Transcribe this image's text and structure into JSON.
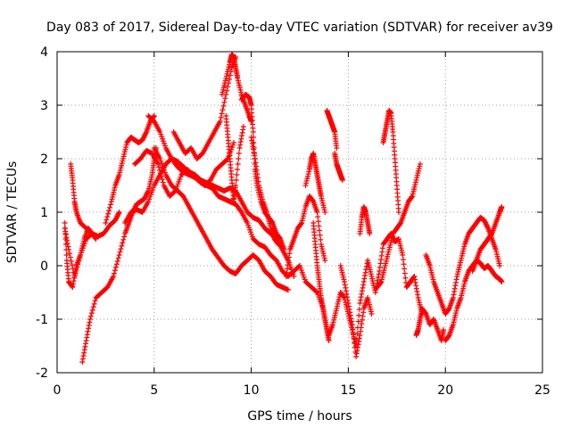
{
  "chart_data": {
    "type": "scatter",
    "title": "Day 083 of 2017, Sidereal Day-to-day VTEC variation (SDTVAR) for receiver av39",
    "xlabel": "GPS time / hours",
    "ylabel": "SDTVAR / TECUs",
    "xlim": [
      0,
      25
    ],
    "ylim": [
      -2,
      4
    ],
    "x_ticks": [
      0,
      5,
      10,
      15,
      20,
      25
    ],
    "y_ticks": [
      -2,
      -1,
      0,
      1,
      2,
      3,
      4
    ],
    "grid": true,
    "marker": "+",
    "series": [
      {
        "color": "#ff0000",
        "tracks": [
          {
            "x": [
              0.4,
              0.6,
              0.9,
              1.2,
              1.5,
              1.8,
              2.1,
              2.4,
              2.7,
              3.0,
              3.2
            ],
            "y": [
              0.7,
              0.3,
              -0.2,
              0.2,
              0.5,
              0.6,
              0.55,
              0.6,
              0.75,
              0.85,
              1.0
            ]
          },
          {
            "x": [
              0.4,
              0.5,
              0.6,
              0.8,
              1.0,
              1.2,
              1.4,
              1.6,
              1.8
            ],
            "y": [
              0.8,
              0.1,
              -0.3,
              -0.4,
              0.0,
              0.2,
              0.5,
              0.7,
              0.6
            ]
          },
          {
            "x": [
              0.7,
              0.8,
              0.9,
              1.0,
              1.2,
              1.5,
              1.8,
              2.0
            ],
            "y": [
              1.9,
              1.6,
              1.2,
              1.0,
              0.8,
              0.7,
              0.6,
              0.5
            ]
          },
          {
            "x": [
              1.3,
              1.5,
              1.7,
              2.0,
              2.3,
              2.6,
              2.9,
              3.2,
              3.5,
              3.7,
              3.9,
              4.1,
              4.3,
              4.5,
              4.7,
              4.9,
              5.0,
              5.1
            ],
            "y": [
              -1.8,
              -1.4,
              -1.0,
              -0.6,
              -0.5,
              -0.4,
              -0.2,
              0.2,
              0.6,
              0.8,
              1.0,
              1.15,
              1.2,
              1.25,
              1.4,
              1.7,
              2.0,
              2.2
            ]
          },
          {
            "x": [
              2.5,
              2.8,
              3.0,
              3.2,
              3.4,
              3.6,
              3.8,
              4.0,
              4.2,
              4.4,
              4.6,
              4.8,
              5.0
            ],
            "y": [
              0.8,
              1.2,
              1.5,
              1.7,
              2.0,
              2.3,
              2.4,
              2.35,
              2.3,
              2.35,
              2.5,
              2.7,
              2.8
            ]
          },
          {
            "x": [
              3.5,
              3.8,
              4.1,
              4.4,
              4.7,
              5.0,
              5.3,
              5.6,
              5.9,
              6.2,
              6.5,
              6.8,
              7.1,
              7.4,
              7.7,
              8.0,
              8.3,
              8.6,
              8.9,
              9.2,
              9.5,
              9.8,
              10.1,
              10.4,
              10.7,
              11.0,
              11.3,
              11.6,
              11.9,
              12.2
            ],
            "y": [
              0.8,
              1.0,
              1.05,
              1.0,
              1.2,
              1.5,
              1.7,
              1.9,
              2.0,
              1.95,
              1.85,
              1.75,
              1.7,
              1.6,
              1.55,
              1.5,
              1.45,
              1.4,
              1.45,
              1.4,
              1.2,
              1.0,
              0.9,
              0.85,
              0.7,
              0.6,
              0.5,
              0.3,
              0.1,
              -0.2
            ]
          },
          {
            "x": [
              5.0,
              5.3,
              5.6,
              5.9,
              6.2,
              6.5,
              6.8,
              7.1,
              7.4,
              7.7,
              8.0,
              8.3,
              8.6,
              8.9,
              9.2,
              9.5,
              9.8,
              10.1,
              10.4,
              10.7,
              11.0,
              11.3,
              11.6,
              11.9
            ],
            "y": [
              2.2,
              2.0,
              1.7,
              1.5,
              1.4,
              1.3,
              1.1,
              0.9,
              0.7,
              0.5,
              0.3,
              0.15,
              0.0,
              -0.1,
              -0.15,
              0.0,
              0.1,
              0.2,
              0.1,
              -0.1,
              -0.2,
              -0.35,
              -0.4,
              -0.45
            ]
          },
          {
            "x": [
              4.7,
              5.0,
              5.3,
              5.6,
              5.9,
              6.2,
              6.5,
              6.8,
              7.1,
              7.4,
              7.7,
              8.0,
              8.3,
              8.6,
              8.9,
              9.2,
              9.5,
              9.8,
              10.1,
              10.4,
              10.7,
              11.0,
              11.3,
              11.6,
              11.9,
              12.2,
              12.5,
              12.8,
              13.1,
              13.4,
              13.7
            ],
            "y": [
              2.8,
              2.7,
              2.5,
              2.2,
              2.0,
              1.85,
              1.75,
              1.7,
              1.65,
              1.55,
              1.5,
              1.45,
              1.3,
              1.25,
              1.2,
              1.15,
              1.0,
              0.8,
              0.5,
              0.4,
              0.35,
              0.2,
              0.1,
              -0.1,
              -0.2,
              -0.1,
              0.0,
              -0.3,
              -0.4,
              -0.5,
              -0.8
            ]
          },
          {
            "x": [
              4.0,
              4.3,
              4.6,
              4.9,
              5.2,
              5.5,
              5.8,
              6.1,
              6.4,
              6.7,
              7.0,
              7.3,
              7.6,
              7.9,
              8.2,
              8.5,
              8.8,
              9.1
            ],
            "y": [
              1.9,
              2.0,
              2.15,
              2.1,
              1.9,
              1.5,
              1.3,
              1.4,
              1.7,
              1.8,
              1.7,
              1.6,
              1.5,
              1.6,
              1.8,
              1.9,
              2.0,
              2.3
            ]
          },
          {
            "x": [
              6.0,
              6.3,
              6.6,
              6.9,
              7.2,
              7.5,
              7.8,
              8.1,
              8.4,
              8.7,
              9.0,
              9.2
            ],
            "y": [
              2.5,
              2.3,
              2.1,
              2.2,
              2.0,
              2.1,
              2.3,
              2.5,
              2.7,
              3.2,
              3.7,
              3.9
            ]
          },
          {
            "x": [
              8.5,
              8.7,
              8.9,
              9.0,
              9.1,
              9.2,
              9.3,
              9.5,
              9.7,
              9.9,
              10.0
            ],
            "y": [
              3.2,
              3.5,
              3.8,
              3.95,
              3.9,
              3.7,
              3.5,
              3.2,
              3.0,
              2.8,
              2.7
            ]
          },
          {
            "x": [
              8.7,
              8.8,
              8.9,
              9.0,
              9.1,
              9.2,
              9.4,
              9.6
            ],
            "y": [
              2.8,
              2.4,
              2.0,
              1.6,
              1.2,
              1.5,
              2.2,
              2.6
            ]
          },
          {
            "x": [
              9.5,
              9.7,
              9.9,
              10.0,
              10.1,
              10.2,
              10.3,
              10.5,
              10.7,
              10.9,
              11.1,
              11.3,
              11.5,
              11.7
            ],
            "y": [
              3.1,
              3.2,
              3.15,
              3.0,
              2.5,
              1.8,
              1.5,
              1.2,
              1.0,
              0.9,
              0.8,
              0.6,
              0.5,
              0.3
            ]
          },
          {
            "x": [
              10.0,
              10.2,
              10.4,
              10.6,
              10.8,
              11.0,
              11.2,
              11.4
            ],
            "y": [
              2.4,
              2.0,
              1.5,
              1.2,
              1.0,
              0.7,
              0.5,
              0.4
            ]
          },
          {
            "x": [
              11.8,
              12.0,
              12.2,
              12.4,
              12.6,
              12.8,
              13.0,
              13.2,
              13.4,
              13.6,
              13.8
            ],
            "y": [
              -0.2,
              0.3,
              0.5,
              0.7,
              0.8,
              1.1,
              1.3,
              1.2,
              1.0,
              0.4,
              0.1
            ]
          },
          {
            "x": [
              12.8,
              13.0,
              13.1,
              13.2,
              13.3,
              13.4,
              13.5,
              13.6,
              13.8
            ],
            "y": [
              1.5,
              1.8,
              2.0,
              2.1,
              1.9,
              1.7,
              1.5,
              1.3,
              1.0
            ]
          },
          {
            "x": [
              13.2,
              13.3,
              13.4,
              13.5,
              13.6,
              13.7,
              13.8,
              13.9,
              14.0
            ],
            "y": [
              0.8,
              0.4,
              0.0,
              -0.3,
              -0.6,
              -0.8,
              -1.0,
              -1.2,
              -1.4
            ]
          },
          {
            "x": [
              13.9,
              14.0,
              14.1,
              14.2,
              14.3,
              14.4
            ],
            "y": [
              2.9,
              2.8,
              2.7,
              2.6,
              2.5,
              2.2
            ]
          },
          {
            "x": [
              14.3,
              14.4,
              14.5,
              14.6,
              14.7
            ],
            "y": [
              2.1,
              1.9,
              1.8,
              1.7,
              1.6
            ]
          },
          {
            "x": [
              14.0,
              14.2,
              14.4,
              14.6,
              14.8,
              15.0,
              15.2,
              15.4,
              15.6,
              15.8,
              16.0,
              16.2,
              16.4,
              16.6,
              16.8,
              17.0,
              17.2,
              17.4,
              17.6,
              17.8,
              18.0,
              18.2,
              18.4,
              18.6,
              18.8
            ],
            "y": [
              -1.3,
              -1.1,
              -0.8,
              -0.5,
              -0.6,
              -0.9,
              -1.2,
              -1.5,
              -0.7,
              -0.3,
              0.1,
              -0.2,
              -0.5,
              -0.1,
              0.4,
              0.5,
              0.6,
              0.45,
              0.5,
              0.2,
              -0.4,
              -0.3,
              -0.2,
              -0.6,
              -0.9
            ]
          },
          {
            "x": [
              14.6,
              14.8,
              15.0,
              15.2,
              15.4,
              15.6,
              15.8,
              16.0,
              16.2
            ],
            "y": [
              0.0,
              -0.3,
              -0.7,
              -1.1,
              -1.7,
              -1.3,
              -0.8,
              -0.6,
              -0.9
            ]
          },
          {
            "x": [
              15.6,
              15.7,
              15.8,
              15.9,
              16.0,
              16.1
            ],
            "y": [
              0.6,
              0.9,
              1.1,
              1.0,
              0.8,
              0.6
            ]
          },
          {
            "x": [
              16.8,
              16.9,
              17.0,
              17.1,
              17.2,
              17.3,
              17.4,
              17.5,
              17.6
            ],
            "y": [
              2.3,
              2.5,
              2.7,
              2.9,
              2.85,
              2.5,
              2.0,
              1.5,
              1.0
            ]
          },
          {
            "x": [
              16.5,
              16.7,
              16.9,
              17.1,
              17.3,
              17.5,
              17.7,
              17.9,
              18.1,
              18.3,
              18.5,
              18.7
            ],
            "y": [
              -0.4,
              -0.3,
              0.0,
              0.3,
              0.6,
              0.7,
              0.8,
              1.0,
              1.2,
              1.3,
              1.6,
              1.9
            ]
          },
          {
            "x": [
              18.5,
              18.6,
              18.7,
              18.8,
              19.0,
              19.2,
              19.4,
              19.6,
              19.8,
              19.9
            ],
            "y": [
              -1.3,
              -1.2,
              -1.0,
              -0.8,
              -0.9,
              -1.1,
              -1.0,
              -1.2,
              -1.4,
              -1.2
            ]
          },
          {
            "x": [
              19.0,
              19.2,
              19.4,
              19.6,
              19.8,
              20.0,
              20.2,
              20.4,
              20.6,
              20.8,
              21.0,
              21.2,
              21.4,
              21.6,
              21.8,
              22.0,
              22.2,
              22.4,
              22.6,
              22.8
            ],
            "y": [
              0.2,
              0.0,
              -0.3,
              -0.5,
              -0.7,
              -0.9,
              -0.8,
              -0.6,
              -0.2,
              0.1,
              0.4,
              0.6,
              0.7,
              0.8,
              0.9,
              0.85,
              0.7,
              0.5,
              0.3,
              0.0
            ]
          },
          {
            "x": [
              20.0,
              20.2,
              20.4,
              20.6,
              20.8,
              21.0,
              21.2,
              21.4,
              21.6,
              21.8,
              22.0,
              22.2,
              22.4,
              22.6,
              22.8,
              22.9
            ],
            "y": [
              -1.4,
              -1.3,
              -1.1,
              -0.8,
              -0.6,
              -0.3,
              -0.1,
              0.0,
              0.1,
              0.05,
              -0.05,
              0.0,
              -0.1,
              -0.2,
              -0.25,
              -0.3
            ]
          },
          {
            "x": [
              21.4,
              21.6,
              21.8,
              22.0,
              22.2,
              22.4,
              22.6,
              22.8,
              22.9
            ],
            "y": [
              -0.1,
              0.1,
              0.3,
              0.4,
              0.5,
              0.6,
              0.8,
              1.0,
              1.1
            ]
          }
        ]
      }
    ]
  }
}
